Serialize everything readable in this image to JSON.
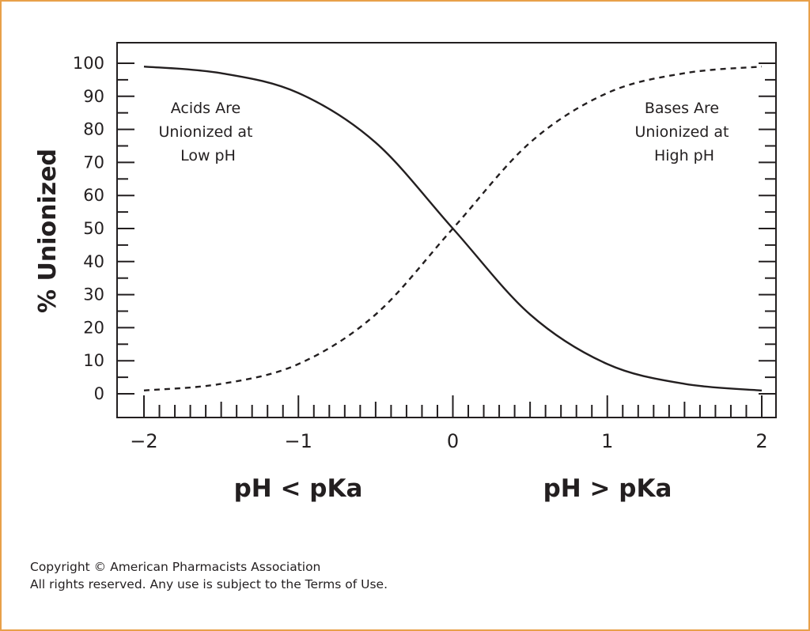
{
  "chart_data": {
    "type": "line",
    "xlim": [
      -2,
      2
    ],
    "ylim": [
      0,
      100
    ],
    "ylabel": "% Unionized",
    "x_ticks": [
      "−2",
      "−1",
      "0",
      "1",
      "2"
    ],
    "y_ticks": [
      "0",
      "10",
      "20",
      "30",
      "40",
      "50",
      "60",
      "70",
      "80",
      "90",
      "100"
    ],
    "grid": false,
    "series": [
      {
        "style": "solid",
        "color": "#231f20",
        "x": [
          -2,
          -1.5,
          -1,
          -0.5,
          0,
          0.5,
          1,
          1.5,
          2
        ],
        "y": [
          99,
          97,
          91,
          76,
          50,
          24,
          9,
          3,
          1
        ]
      },
      {
        "style": "dashed",
        "color": "#231f20",
        "x": [
          -2,
          -1.5,
          -1,
          -0.5,
          0,
          0.5,
          1,
          1.5,
          2
        ],
        "y": [
          1,
          3,
          9,
          24,
          50,
          76,
          91,
          97,
          99
        ]
      }
    ],
    "annotations": [
      {
        "lines": [
          "Acids Are",
          "Unionized at",
          "Low pH"
        ]
      },
      {
        "lines": [
          "Bases Are",
          "Unionized at",
          "High pH"
        ]
      }
    ],
    "regions": [
      "pH < pKa",
      "pH > pKa"
    ]
  },
  "copyright": {
    "line1": "Copyright © American Pharmacists Association",
    "line2": "All rights reserved. Any use is subject to the Terms of Use."
  }
}
